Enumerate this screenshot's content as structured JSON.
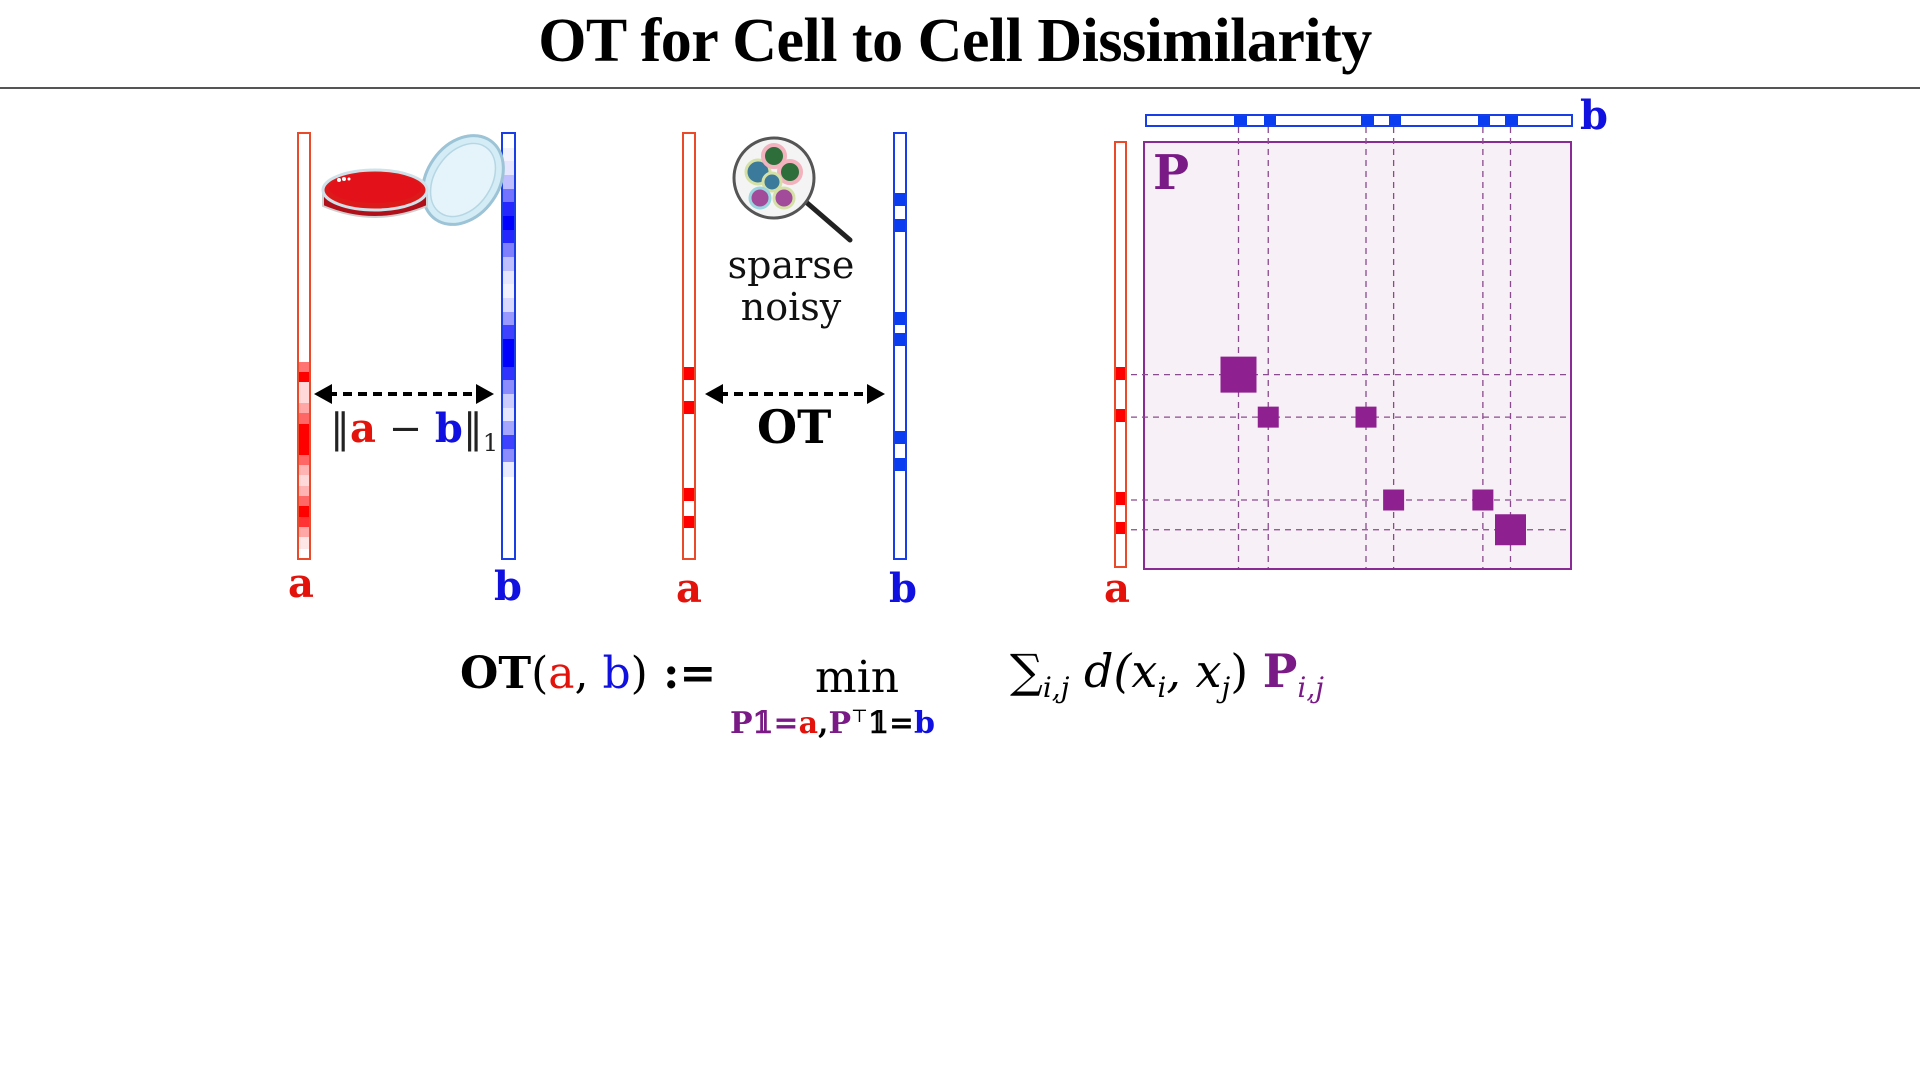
{
  "title": "OT for Cell to Cell Dissimilarity",
  "colors": {
    "a": "#e3120b",
    "b": "#1010e0",
    "P": "#7a1a86",
    "matrix_bg": "#f8f0f7",
    "matrix_entry": "#8e2090"
  },
  "panels": {
    "dense": {
      "a_label": "a",
      "b_label": "b",
      "norm": {
        "open": "‖",
        "a": "a",
        "minus": " − ",
        "b": "b",
        "close": "‖",
        "sub": "1"
      },
      "icon": "petri-dish-icon",
      "a_intensities": [
        0,
        0,
        0,
        0,
        0,
        0,
        0,
        0,
        0,
        0,
        0,
        0,
        0,
        0,
        0,
        0,
        0,
        0,
        0,
        0,
        0,
        0,
        0.55,
        1,
        0.15,
        0.15,
        0.35,
        0.6,
        1,
        1,
        1,
        0.6,
        0.3,
        0.15,
        0.3,
        0.6,
        1,
        0.8,
        0.35,
        0.1,
        0
      ],
      "b_intensities": [
        0,
        0.05,
        0.1,
        0.25,
        0.55,
        0.85,
        1,
        0.85,
        0.5,
        0.25,
        0.1,
        0.05,
        0.15,
        0.4,
        0.75,
        1,
        1,
        0.8,
        0.45,
        0.2,
        0.1,
        0.35,
        0.75,
        0.45,
        0.08,
        0,
        0,
        0,
        0,
        0,
        0
      ]
    },
    "sparse": {
      "a_label": "a",
      "b_label": "b",
      "arrow_label": "OT",
      "caption_line1": "sparse",
      "caption_line2": "noisy",
      "icon": "magnifier-cells-icon",
      "a_spikes": [
        0.565,
        0.645,
        0.85,
        0.915
      ],
      "b_spikes": [
        0.155,
        0.215,
        0.435,
        0.485,
        0.715,
        0.78
      ]
    },
    "matrix": {
      "label": "P",
      "a_label": "a",
      "b_label": "b",
      "rows": [
        0.545,
        0.645,
        0.84,
        0.91
      ],
      "cols": [
        0.22,
        0.29,
        0.52,
        0.585,
        0.795,
        0.86
      ],
      "entries": [
        {
          "row": 0,
          "col": 0,
          "mass": 1.0
        },
        {
          "row": 1,
          "col": 1,
          "mass": 0.25
        },
        {
          "row": 1,
          "col": 2,
          "mass": 0.25
        },
        {
          "row": 2,
          "col": 3,
          "mass": 0.25
        },
        {
          "row": 2,
          "col": 4,
          "mass": 0.25
        },
        {
          "row": 3,
          "col": 5,
          "mass": 0.75
        }
      ]
    }
  },
  "formula": {
    "ot": "OT",
    "lparen": "(",
    "a": "a",
    "comma": ", ",
    "b": "b",
    "rparen": ")",
    "assign": " :=",
    "min": "min",
    "constraint_P1": "P𝟙=",
    "constraint_a": "a",
    "constraint_comma": ",",
    "constraint_PT": "P",
    "constraint_T": "⊤",
    "constraint_1b": "𝟙=",
    "constraint_b": "b",
    "sum": "∑",
    "sum_sub": "i,j",
    "cost": " d(x",
    "cost_i": "i",
    "cost_mid": ", x",
    "cost_j": "j",
    "cost_close": ") ",
    "P": "P",
    "P_sub": "i,j"
  }
}
